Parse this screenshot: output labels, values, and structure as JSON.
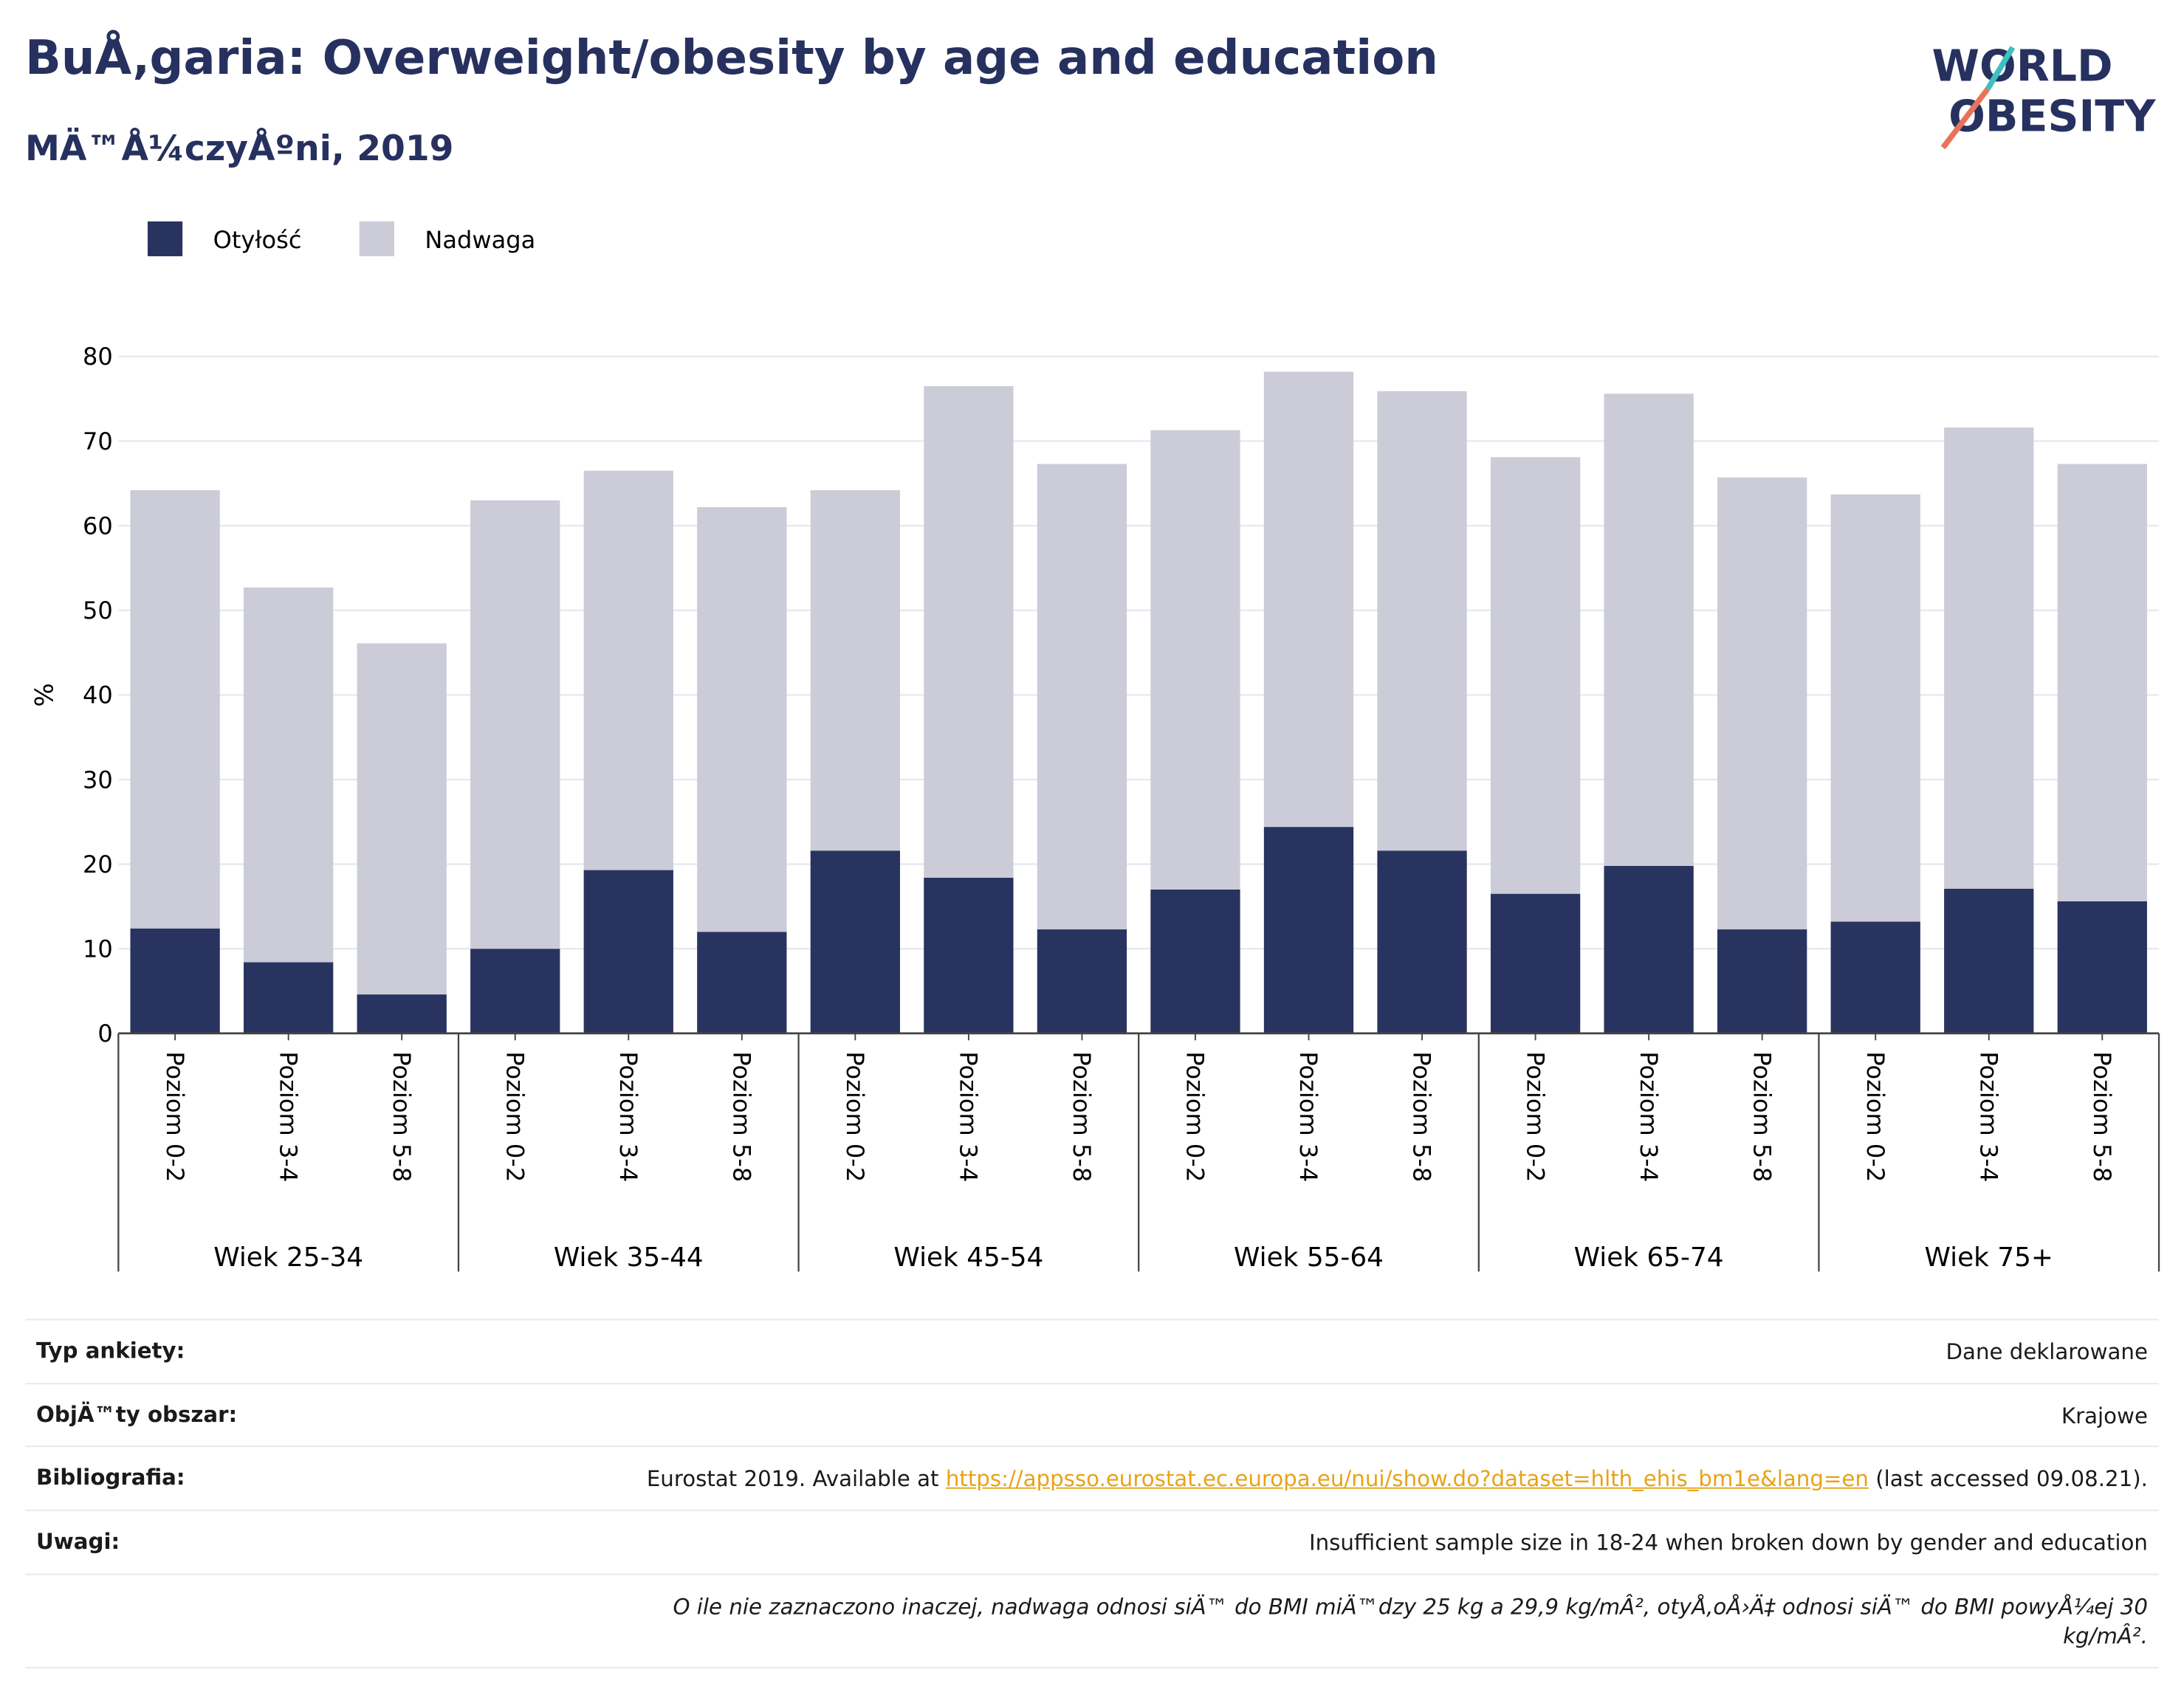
{
  "header": {
    "title": "BuÅ‚garia: Overweight/obesity by age and education",
    "subtitle": "MÄ™Å¼czyÅºni, 2019",
    "logo": [
      "WORLD",
      "OBESITY"
    ]
  },
  "chart_data": {
    "type": "bar",
    "stacked": true,
    "ylabel": "%",
    "categories": [
      "Poziom 0-2",
      "Poziom 3-4",
      "Poziom 5-8",
      "Poziom 0-2",
      "Poziom 3-4",
      "Poziom 5-8",
      "Poziom 0-2",
      "Poziom 3-4",
      "Poziom 5-8",
      "Poziom 0-2",
      "Poziom 3-4",
      "Poziom 5-8",
      "Poziom 0-2",
      "Poziom 3-4",
      "Poziom 5-8",
      "Poziom 0-2",
      "Poziom 3-4",
      "Poziom 5-8"
    ],
    "groups": [
      "Wiek 25-34",
      "Wiek 35-44",
      "Wiek 45-54",
      "Wiek 55-64",
      "Wiek 65-74",
      "Wiek 75+"
    ],
    "series": [
      {
        "name": "Otyłość",
        "color": "#28335f",
        "values": [
          12.4,
          8.4,
          4.6,
          10.0,
          19.3,
          12.0,
          21.6,
          18.4,
          12.3,
          17.0,
          24.4,
          21.6,
          16.5,
          19.8,
          12.3,
          13.2,
          17.1,
          15.6
        ]
      },
      {
        "name": "Nadwaga",
        "color": "#cbccd8",
        "values": [
          51.8,
          44.3,
          41.5,
          53.0,
          47.2,
          50.2,
          42.6,
          58.1,
          55.0,
          54.3,
          53.8,
          54.3,
          51.6,
          55.8,
          53.4,
          50.5,
          54.5,
          51.7
        ]
      }
    ],
    "ylim": [
      0,
      80
    ],
    "yticks": [
      0,
      10,
      20,
      30,
      40,
      50,
      60,
      70,
      80
    ],
    "grid": true,
    "legend": "top-left"
  },
  "info": {
    "rows": [
      {
        "label": "Typ ankiety:",
        "value": "Dane deklarowane"
      },
      {
        "label": "ObjÄ™ty obszar:",
        "value": "Krajowe"
      },
      {
        "label": "Bibliografia:",
        "value": "Eurostat 2019. Available at ",
        "link": "https://appsso.eurostat.ec.europa.eu/nui/show.do?dataset=hlth_ehis_bm1e&lang=en",
        "suffix": " (last accessed 09.08.21)."
      },
      {
        "label": "Uwagi:",
        "value": "Insufficient sample size in 18-24 when broken down by gender and education"
      }
    ],
    "note": "O ile nie zaznaczono inaczej, nadwaga odnosi siÄ™ do BMI miÄ™dzy 25 kg a 29,9 kg/mÂ², otyÅ‚oÅ›Ä‡ odnosi siÄ™ do BMI powyÅ¼ej 30 kg/mÂ²."
  }
}
